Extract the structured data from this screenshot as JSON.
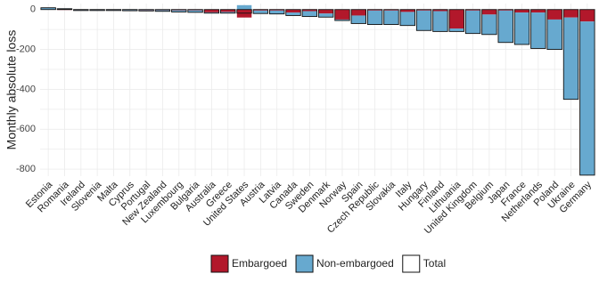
{
  "chart_data": {
    "type": "bar",
    "y_label": "Monthly absolute loss",
    "categories": [
      "Estonia",
      "Romania",
      "Ireland",
      "Slovenia",
      "Malta",
      "Cyprus",
      "Portugal",
      "New Zealand",
      "Luxembourg",
      "Bulgaria",
      "Australia",
      "Greece",
      "United States",
      "Austria",
      "Latvia",
      "Canada",
      "Sweden",
      "Denmark",
      "Norway",
      "Spain",
      "Czech Republic",
      "Slovakia",
      "Italy",
      "Hungary",
      "Finland",
      "Lithuania",
      "United Kingdom",
      "Belgium",
      "Japan",
      "France",
      "Netherlands",
      "Poland",
      "Ukraine",
      "Germany"
    ],
    "series": [
      {
        "name": "Embargoed",
        "color": "#b2182b",
        "values": [
          -1,
          -2,
          -2,
          -2,
          -2,
          -2,
          -3,
          -3,
          -4,
          -4,
          -14,
          -12,
          -40,
          -5,
          -5,
          -15,
          -8,
          -20,
          -50,
          -30,
          -5,
          -5,
          -12,
          -5,
          -8,
          -95,
          -5,
          -25,
          -5,
          -15,
          -15,
          -50,
          -40,
          -60
        ]
      },
      {
        "name": "Non-embargoed",
        "color": "#67a9cf",
        "values": [
          10,
          6,
          -3,
          -3,
          -3,
          -4,
          -4,
          -6,
          -8,
          -10,
          -4,
          -6,
          22,
          -15,
          -17,
          -15,
          -27,
          -18,
          -5,
          -40,
          -70,
          -70,
          -68,
          -100,
          -102,
          -15,
          -115,
          -100,
          -160,
          -160,
          -180,
          -150,
          -410,
          -770
        ]
      },
      {
        "name": "Total",
        "color": "#ffffff",
        "values": [
          9,
          4,
          -5,
          -5,
          -5,
          -6,
          -7,
          -9,
          -12,
          -14,
          -18,
          -18,
          -18,
          -20,
          -22,
          -30,
          -35,
          -38,
          -55,
          -70,
          -75,
          -75,
          -80,
          -105,
          -110,
          -110,
          -120,
          -125,
          -165,
          -175,
          -195,
          -200,
          -450,
          -830
        ]
      }
    ],
    "ylim": [
      -835,
      30
    ],
    "yticks": [
      0,
      -200,
      -400,
      -600,
      -800
    ],
    "grid": true
  }
}
